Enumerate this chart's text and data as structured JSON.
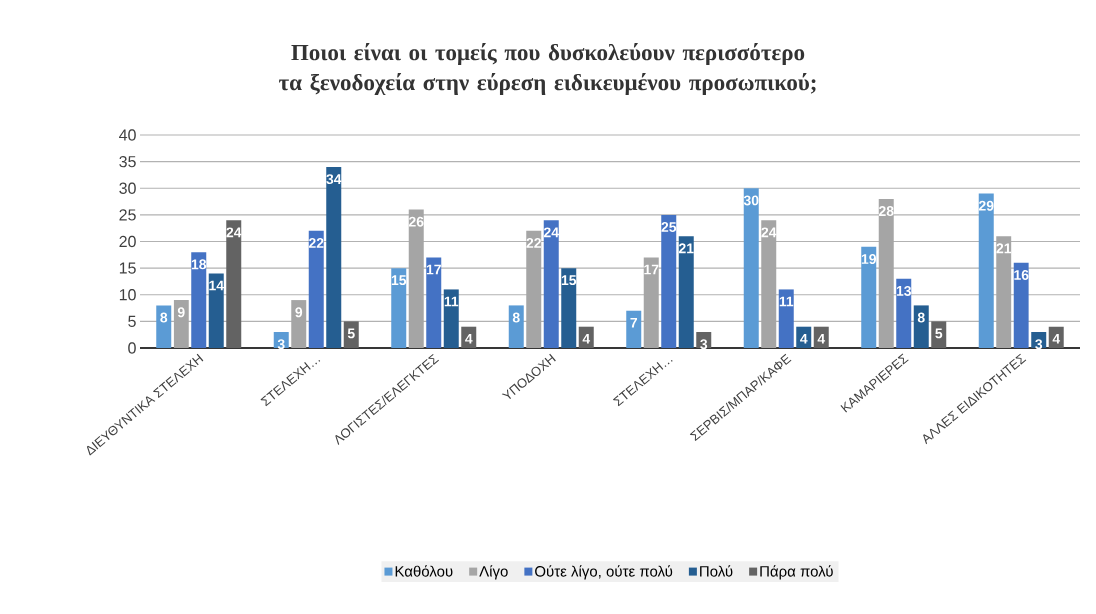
{
  "chart_data": {
    "type": "bar",
    "title": "Ποιοι είναι οι τομείς που δυσκολεύουν περισσότερο τα ξενοδοχεία στην εύρεση ειδικευμένου προσωπικού;",
    "categories": [
      "ΔΙΕΥΘΥΝΤΙΚΑ ΣΤΕΛΕΧΗ",
      "ΣΤΕΛΕΧΗ…",
      "ΛΟΓΙΣΤΕΣ/ΕΛΕΓΚΤΕΣ",
      "ΥΠΟΔΟΧΗ",
      "ΣΤΕΛΕΧΗ…",
      "ΣΕΡΒΙΣ/ΜΠΑΡ/ΚΑΦΕ",
      "ΚΑΜΑΡΙΕΡΕΣ",
      "ΑΛΛΕΣ ΕΙΔΙΚΟΤΗΤΕΣ"
    ],
    "series": [
      {
        "name": "Καθόλου",
        "color": "#5b9bd5",
        "values": [
          8,
          3,
          15,
          8,
          7,
          30,
          19,
          29
        ]
      },
      {
        "name": "Λίγο",
        "color": "#a5a5a5",
        "values": [
          9,
          9,
          26,
          22,
          17,
          24,
          28,
          21
        ]
      },
      {
        "name": "Ούτε λίγο, ούτε πολύ",
        "color": "#4472c4",
        "values": [
          18,
          22,
          17,
          24,
          25,
          11,
          13,
          16
        ]
      },
      {
        "name": "Πολύ",
        "color": "#255e91",
        "values": [
          14,
          34,
          11,
          15,
          21,
          4,
          8,
          3
        ]
      },
      {
        "name": "Πάρα πολύ",
        "color": "#636363",
        "values": [
          24,
          5,
          4,
          4,
          3,
          4,
          5,
          4
        ]
      }
    ],
    "ylim": [
      0,
      40
    ],
    "yticks": [
      0,
      5,
      10,
      15,
      20,
      25,
      30,
      35,
      40
    ],
    "grid": "y",
    "legend": "bottom",
    "data_labels": true
  }
}
